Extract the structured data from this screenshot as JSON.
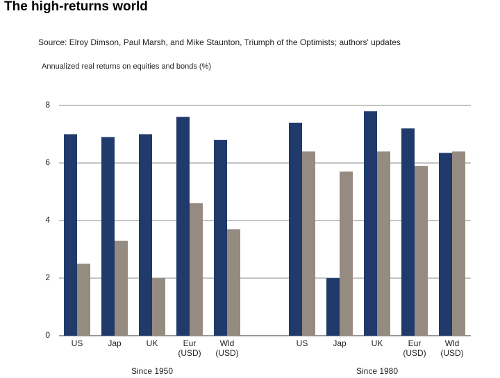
{
  "chart_data": {
    "type": "bar",
    "title": "The high-returns world",
    "subtitle": "Source: Elroy Dimson, Paul Marsh, and Mike Staunton, Triumph of the Optimists; authors' updates",
    "ylabel": "Annualized real returns on equities and bonds (%)",
    "ylim": [
      0,
      8
    ],
    "yticks": [
      0,
      2,
      4,
      6,
      8
    ],
    "grid": true,
    "groups": [
      {
        "label": "Since 1950",
        "categories": [
          "US",
          "Jap",
          "UK",
          "Eur (USD)",
          "Wld (USD)"
        ],
        "series": [
          {
            "color": "#1f3a6b",
            "values": [
              7.0,
              6.9,
              7.0,
              7.6,
              6.8
            ]
          },
          {
            "color": "#958b80",
            "values": [
              2.5,
              3.3,
              2.0,
              4.6,
              3.7
            ]
          }
        ]
      },
      {
        "label": "Since 1980",
        "categories": [
          "US",
          "Jap",
          "UK",
          "Eur (USD)",
          "Wld (USD)"
        ],
        "series": [
          {
            "color": "#1f3a6b",
            "values": [
              7.4,
              2.0,
              7.8,
              7.2,
              6.35
            ]
          },
          {
            "color": "#958b80",
            "values": [
              6.4,
              5.7,
              6.4,
              5.9,
              6.4
            ]
          }
        ]
      }
    ]
  }
}
